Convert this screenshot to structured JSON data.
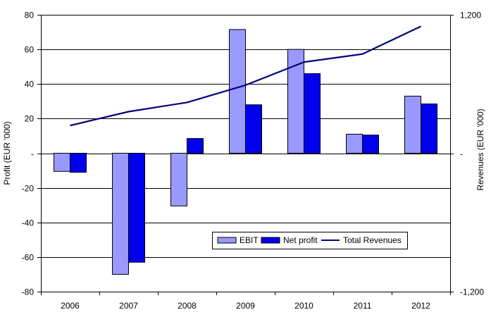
{
  "chart_data": {
    "type": "bar",
    "title": "",
    "categories": [
      "2006",
      "2007",
      "2008",
      "2009",
      "2010",
      "2011",
      "2012"
    ],
    "xlabel": "",
    "ylabel": "Profit (EUR '000)",
    "y2label": "Revenues (EUR '000)",
    "ylim": [
      -80,
      80
    ],
    "y_ticks": [
      80,
      60,
      40,
      20,
      0,
      -20,
      -40,
      -60,
      -80
    ],
    "y_tick_labels": [
      "80",
      "60",
      "40",
      "20",
      "-",
      "-20",
      "-40",
      "-60",
      "-80"
    ],
    "y2lim": [
      -1200,
      1200
    ],
    "y2_ticks": [
      1200,
      0,
      -1200
    ],
    "y2_tick_labels": [
      "1,200",
      "-",
      "-1,200"
    ],
    "grid": true,
    "legend_position": "bottom-center",
    "series": [
      {
        "name": "EBIT",
        "type": "bar",
        "axis": "left",
        "color": "#9999ff",
        "values": [
          -10.5,
          -70,
          -30.5,
          71.5,
          60,
          11,
          33
        ]
      },
      {
        "name": "Net profit",
        "type": "bar",
        "axis": "left",
        "color": "#0000ee",
        "values": [
          -11,
          -63,
          8.5,
          28,
          46,
          10.5,
          28.5
        ]
      },
      {
        "name": "Total Revenues",
        "type": "line",
        "axis": "right",
        "color": "#000080",
        "values": [
          240,
          360,
          440,
          590,
          790,
          860,
          1100
        ]
      }
    ]
  }
}
